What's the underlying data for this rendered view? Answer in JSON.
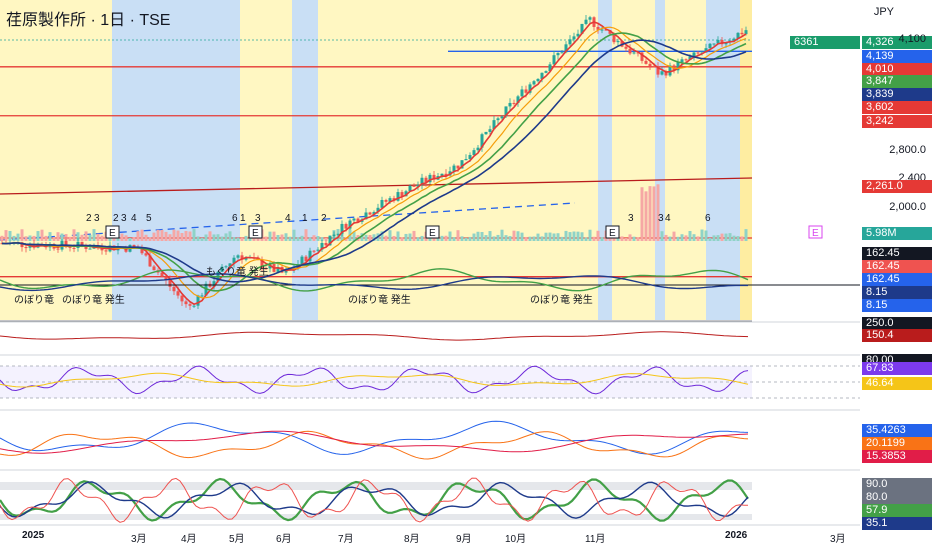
{
  "header": {
    "title": "荏原製作所 · 1日 · TSE",
    "currency": "JPY"
  },
  "colors": {
    "up": "#26a69a",
    "down": "#ef5350",
    "red_line": "#e53935",
    "blue": "#1e3a8a",
    "green": "#43a047",
    "orange": "#f59e0b",
    "yellow_bg": "#fff7c2",
    "blue_bg": "#bfdbfe"
  },
  "price_tags": [
    {
      "label": "4,326",
      "color": "#1a9c6b"
    },
    {
      "label": "4,139",
      "color": "#2563eb"
    },
    {
      "label": "4,010",
      "color": "#e53935"
    },
    {
      "label": "3,847",
      "color": "#43a047"
    },
    {
      "label": "3,839",
      "color": "#1e3a8a"
    },
    {
      "label": "3,602",
      "color": "#e53935"
    },
    {
      "label": "3,242",
      "color": "#e53935"
    }
  ],
  "volume_tag": "6361",
  "axis_labels": [
    "4,100",
    "2,800.0",
    "2,400",
    "2,261.0",
    "2,000.0"
  ],
  "sub_tags": [
    {
      "label": "5.98M",
      "color": "#26a69a"
    },
    {
      "label": "162.45",
      "color": "#131722"
    },
    {
      "label": "162.45",
      "color": "#ef5350"
    },
    {
      "label": "162.45",
      "color": "#2563eb"
    },
    {
      "label": "8.15",
      "color": "#1e3a8a"
    },
    {
      "label": "8.15",
      "color": "#2563eb"
    },
    {
      "label": "250.0",
      "color": "#131722"
    },
    {
      "label": "150.4",
      "color": "#b91c1c"
    },
    {
      "label": "80.00",
      "color": "#131722"
    },
    {
      "label": "67.83",
      "color": "#7c3aed"
    },
    {
      "label": "46.64",
      "color": "#f5c518"
    },
    {
      "label": "35.4263",
      "color": "#2563eb"
    },
    {
      "label": "20.1199",
      "color": "#f97316"
    },
    {
      "label": "15.3853",
      "color": "#e11d48"
    },
    {
      "label": "90.0",
      "color": "#6b7280"
    },
    {
      "label": "80.0",
      "color": "#6b7280"
    },
    {
      "label": "57.9",
      "color": "#43a047"
    },
    {
      "label": "35.1",
      "color": "#1e3a8a"
    }
  ],
  "annotations": {
    "signals": [
      "のぼり竜",
      "のぼり竜 発生",
      "もぐり竜 発生",
      "のぼり竜 発生",
      "のぼり竜 発生"
    ],
    "counts": [
      "2",
      "3",
      "2",
      "3",
      "4",
      "5",
      "6",
      "1",
      "3",
      "4",
      "1",
      "2",
      "3",
      "3",
      "4",
      "6"
    ],
    "earnings": [
      "E",
      "E",
      "E",
      "E",
      "E"
    ]
  },
  "x_labels": [
    "2025",
    "3月",
    "4月",
    "5月",
    "6月",
    "7月",
    "8月",
    "9月",
    "10月",
    "11月",
    "2026",
    "3月"
  ],
  "chart_data": {
    "type": "line",
    "title": "荏原製作所 · 1日 · TSE",
    "x": [
      "2025-01",
      "2025-03",
      "2025-04",
      "2025-05",
      "2025-06",
      "2025-07",
      "2025-08",
      "2025-09",
      "2025-10",
      "2025-11",
      "2025-12",
      "2026-01"
    ],
    "series": [
      {
        "name": "",
        "values": [
          2540,
          2500,
          2000,
          2450,
          2280,
          2700,
          3000,
          3200,
          3750,
          4400,
          3950,
          4326
        ]
      }
    ],
    "reference_levels": [
      4139,
      4010,
      3602,
      2261
    ],
    "ylabel": "JPY"
  }
}
